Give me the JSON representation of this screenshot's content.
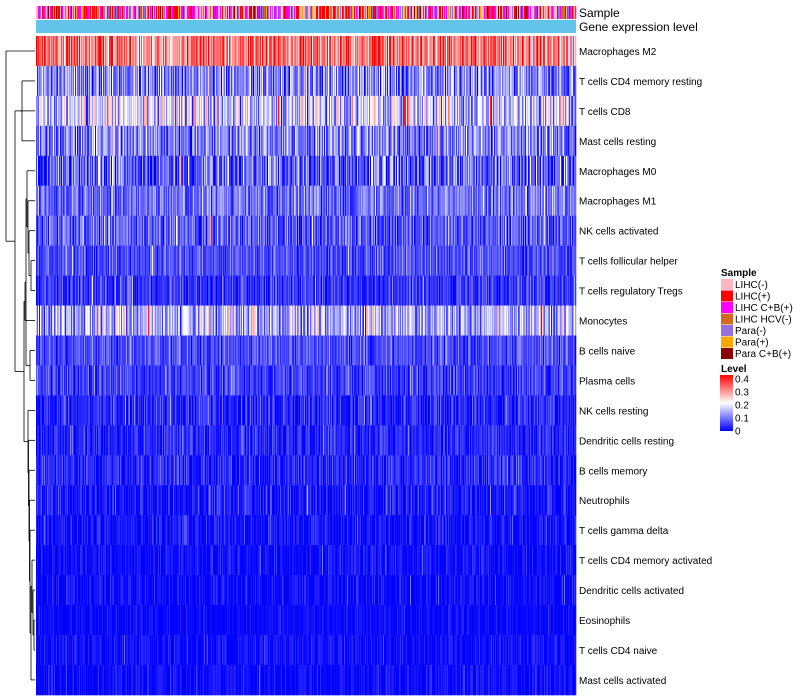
{
  "chart_data": {
    "type": "heatmap",
    "annotation_tracks": [
      {
        "name": "Sample",
        "label": "Sample"
      },
      {
        "name": "Gene expression level",
        "label": "Gene expression level",
        "color": "#63c3e9"
      }
    ],
    "rows": [
      {
        "label": "Macrophages M2",
        "mean": 0.31,
        "spread": 0.08
      },
      {
        "label": "T cells CD4 memory resting",
        "mean": 0.1,
        "spread": 0.08
      },
      {
        "label": "T cells CD8",
        "mean": 0.16,
        "spread": 0.09
      },
      {
        "label": "Mast cells resting",
        "mean": 0.1,
        "spread": 0.07
      },
      {
        "label": "Macrophages M0",
        "mean": 0.07,
        "spread": 0.08
      },
      {
        "label": "Macrophages M1",
        "mean": 0.09,
        "spread": 0.05
      },
      {
        "label": "NK cells activated",
        "mean": 0.07,
        "spread": 0.06
      },
      {
        "label": "T cells follicular helper",
        "mean": 0.06,
        "spread": 0.04
      },
      {
        "label": "T cells regulatory  Tregs",
        "mean": 0.04,
        "spread": 0.04
      },
      {
        "label": "Monocytes",
        "mean": 0.14,
        "spread": 0.08
      },
      {
        "label": "B cells naive",
        "mean": 0.06,
        "spread": 0.04
      },
      {
        "label": "Plasma cells",
        "mean": 0.05,
        "spread": 0.04
      },
      {
        "label": "NK cells resting",
        "mean": 0.03,
        "spread": 0.04
      },
      {
        "label": "Dendritic cells resting",
        "mean": 0.03,
        "spread": 0.035
      },
      {
        "label": "B cells memory",
        "mean": 0.03,
        "spread": 0.035
      },
      {
        "label": "Neutrophils",
        "mean": 0.02,
        "spread": 0.035
      },
      {
        "label": "T cells gamma delta",
        "mean": 0.015,
        "spread": 0.03
      },
      {
        "label": "T cells CD4 memory activated",
        "mean": 0.01,
        "spread": 0.025
      },
      {
        "label": "Dendritic cells activated",
        "mean": 0.01,
        "spread": 0.025
      },
      {
        "label": "Eosinophils",
        "mean": 0.005,
        "spread": 0.02
      },
      {
        "label": "T cells CD4 naive",
        "mean": 0.01,
        "spread": 0.025
      },
      {
        "label": "Mast cells activated",
        "mean": 0.01,
        "spread": 0.025
      }
    ],
    "color_scale": {
      "title": "Level",
      "domain": [
        0,
        0.4
      ],
      "ticks": [
        "0.4",
        "0.3",
        "0.2",
        "0.1",
        "0"
      ],
      "colors": [
        "#0000ff",
        "#ffffff",
        "#ff0000"
      ]
    },
    "sample_legend": {
      "title": "Sample",
      "items": [
        {
          "label": "LIHC(-)",
          "color": "#ffb6c1"
        },
        {
          "label": "LIHC(+)",
          "color": "#ff0000"
        },
        {
          "label": "LIHC C+B(+)",
          "color": "#ff00ff"
        },
        {
          "label": "LIHC HCV(-)",
          "color": "#d2691e"
        },
        {
          "label": "Para(-)",
          "color": "#9370db"
        },
        {
          "label": "Para(+)",
          "color": "#ffa500"
        },
        {
          "label": "Para C+B(+)",
          "color": "#8b0000"
        }
      ]
    },
    "n_samples": 540,
    "row_dendrogram": true
  }
}
